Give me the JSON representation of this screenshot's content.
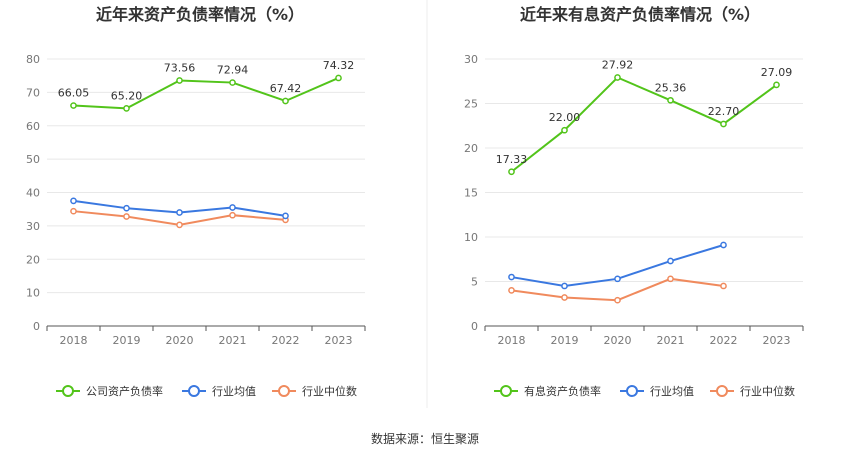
{
  "source": "数据来源：恒生聚源",
  "colors": {
    "company": "#52c41a",
    "avg": "#3a78e0",
    "median": "#f08a5d",
    "grid": "#e8e8e8",
    "axis": "#555555"
  },
  "chart_data": [
    {
      "type": "line",
      "title": "近年来资产负债率情况（%）",
      "categories": [
        "2018",
        "2019",
        "2020",
        "2021",
        "2022",
        "2023"
      ],
      "ylim": [
        0,
        80
      ],
      "yticks": [
        0,
        10,
        20,
        30,
        40,
        50,
        60,
        70,
        80
      ],
      "series": [
        {
          "name": "公司资产负债率",
          "key": "company",
          "values": [
            66.05,
            65.2,
            73.56,
            72.94,
            67.42,
            74.32
          ],
          "labels": [
            "66.05",
            "65.20",
            "73.56",
            "72.94",
            "67.42",
            "74.32"
          ]
        },
        {
          "name": "行业均值",
          "key": "avg",
          "values": [
            37.5,
            35.3,
            34.0,
            35.5,
            33.0,
            null
          ]
        },
        {
          "name": "行业中位数",
          "key": "median",
          "values": [
            34.4,
            32.8,
            30.3,
            33.2,
            31.8,
            null
          ]
        }
      ]
    },
    {
      "type": "line",
      "title": "近年来有息资产负债率情况（%）",
      "categories": [
        "2018",
        "2019",
        "2020",
        "2021",
        "2022",
        "2023"
      ],
      "ylim": [
        0,
        30
      ],
      "yticks": [
        0,
        5,
        10,
        15,
        20,
        25,
        30
      ],
      "series": [
        {
          "name": "有息资产负债率",
          "key": "company",
          "values": [
            17.33,
            22.0,
            27.92,
            25.36,
            22.7,
            27.09
          ],
          "labels": [
            "17.33",
            "22.00",
            "27.92",
            "25.36",
            "22.70",
            "27.09"
          ]
        },
        {
          "name": "行业均值",
          "key": "avg",
          "values": [
            5.5,
            4.5,
            5.3,
            7.3,
            9.1,
            null
          ]
        },
        {
          "name": "行业中位数",
          "key": "median",
          "values": [
            4.0,
            3.2,
            2.9,
            5.3,
            4.5,
            null
          ]
        }
      ]
    }
  ]
}
